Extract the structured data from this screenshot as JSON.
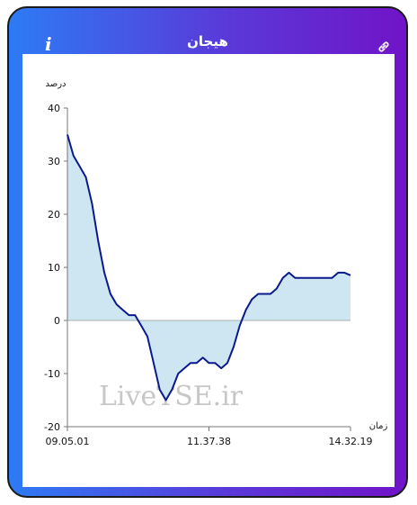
{
  "header": {
    "title": "هیجان",
    "info_glyph": "i",
    "info_icon": "info-icon",
    "link_icon": "link-icon"
  },
  "watermark": "LiveTSE.ir",
  "colors": {
    "line": "#0a1a8c",
    "fill": "#cde6f2",
    "gradient_start": "#2d7bf5",
    "gradient_end": "#7014c8"
  },
  "chart_data": {
    "type": "area",
    "ylabel": "درصد",
    "xlabel": "زمان",
    "ylim": [
      -20,
      40
    ],
    "yticks": [
      -20,
      -10,
      0,
      10,
      20,
      30,
      40
    ],
    "xtick_labels": [
      "09.05.01",
      "11.37.38",
      "14.32.19"
    ],
    "series": [
      {
        "values": [
          35,
          31,
          29,
          27,
          22,
          15,
          9,
          5,
          3,
          2,
          1,
          1,
          -1,
          -3,
          -8,
          -13,
          -15,
          -13,
          -10,
          -9,
          -8,
          -8,
          -7,
          -8,
          -8,
          -9,
          -8,
          -5,
          -1,
          2,
          4,
          5,
          5,
          5,
          6,
          8,
          9,
          8,
          8,
          8,
          8,
          8,
          8,
          8,
          9,
          9,
          8.5
        ]
      }
    ]
  }
}
